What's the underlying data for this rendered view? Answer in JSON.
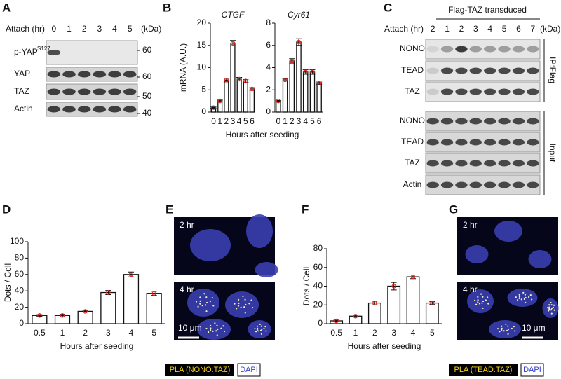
{
  "panel_letters": [
    "A",
    "B",
    "C",
    "D",
    "E",
    "F",
    "G"
  ],
  "blot_a": {
    "header": "Attach (hr)",
    "lanes": [
      "0",
      "1",
      "2",
      "3",
      "4",
      "5"
    ],
    "unit": "(kDa)",
    "rows": [
      {
        "label": "p-YAP",
        "sup": "S127",
        "marker": "60"
      },
      {
        "label": "YAP",
        "marker": "60"
      },
      {
        "label": "TAZ",
        "marker": "50"
      },
      {
        "label": "Actin",
        "marker": "40"
      }
    ]
  },
  "blot_c": {
    "title": "Flag-TAZ transduced",
    "header": "Attach (hr)",
    "lanes": [
      "2",
      "1",
      "2",
      "3",
      "4",
      "5",
      "6",
      "7"
    ],
    "unit": "(kDa)",
    "rows": [
      "NONO",
      "TEAD",
      "TAZ",
      "NONO",
      "TEAD",
      "TAZ",
      "Actin"
    ],
    "groups": [
      "IP:Flag",
      "Input"
    ]
  },
  "chart_data": [
    {
      "type": "bar",
      "title": "CTGF",
      "y_label": "mRNA (A.U.)",
      "x_label": "Hours after seeding",
      "categories": [
        "0",
        "1",
        "2",
        "3",
        "4",
        "5",
        "6"
      ],
      "values": [
        1,
        2.5,
        7.2,
        15.5,
        7.4,
        7,
        5.2
      ],
      "errors": [
        0.15,
        0.2,
        0.4,
        0.6,
        0.4,
        0.3,
        0.3
      ],
      "ylim": [
        0,
        20
      ],
      "yticks": [
        0,
        5,
        10,
        15,
        20
      ]
    },
    {
      "type": "bar",
      "title": "Cyr61",
      "categories": [
        "0",
        "1",
        "2",
        "3",
        "4",
        "5",
        "6"
      ],
      "values": [
        1,
        2.9,
        4.6,
        6.3,
        3.6,
        3.6,
        2.6
      ],
      "errors": [
        0.05,
        0.1,
        0.2,
        0.3,
        0.2,
        0.2,
        0.1
      ],
      "ylim": [
        0,
        8
      ],
      "yticks": [
        0,
        2,
        4,
        6,
        8
      ]
    },
    {
      "type": "bar",
      "y_label": "Dots / Cell",
      "x_label": "Hours after seeding",
      "categories": [
        "0.5",
        "1",
        "2",
        "3",
        "4",
        "5"
      ],
      "values": [
        10,
        10,
        15,
        38,
        60,
        37
      ],
      "errors": [
        1,
        1.5,
        1,
        2.5,
        3,
        2.5
      ],
      "ylim": [
        0,
        100
      ],
      "yticks": [
        0,
        20,
        40,
        60,
        80,
        100
      ]
    },
    {
      "type": "bar",
      "y_label": "Dots / Cell",
      "x_label": "Hours after seeding",
      "categories": [
        "0.5",
        "1",
        "2",
        "3",
        "4",
        "5"
      ],
      "values": [
        3,
        8,
        22,
        40,
        50,
        22
      ],
      "errors": [
        0.8,
        1,
        2,
        4,
        2,
        1.5
      ],
      "ylim": [
        0,
        80
      ],
      "yticks": [
        0,
        20,
        40,
        60,
        80
      ]
    }
  ],
  "image_e": {
    "labels": [
      "2 hr",
      "4 hr"
    ],
    "scale": "10 μm",
    "legend": [
      "PLA (NONO:TAZ)",
      "DAPI"
    ]
  },
  "image_g": {
    "labels": [
      "2 hr",
      "4 hr"
    ],
    "scale": "10 μm",
    "legend": [
      "PLA (TEAD:TAZ)",
      "DAPI"
    ]
  }
}
